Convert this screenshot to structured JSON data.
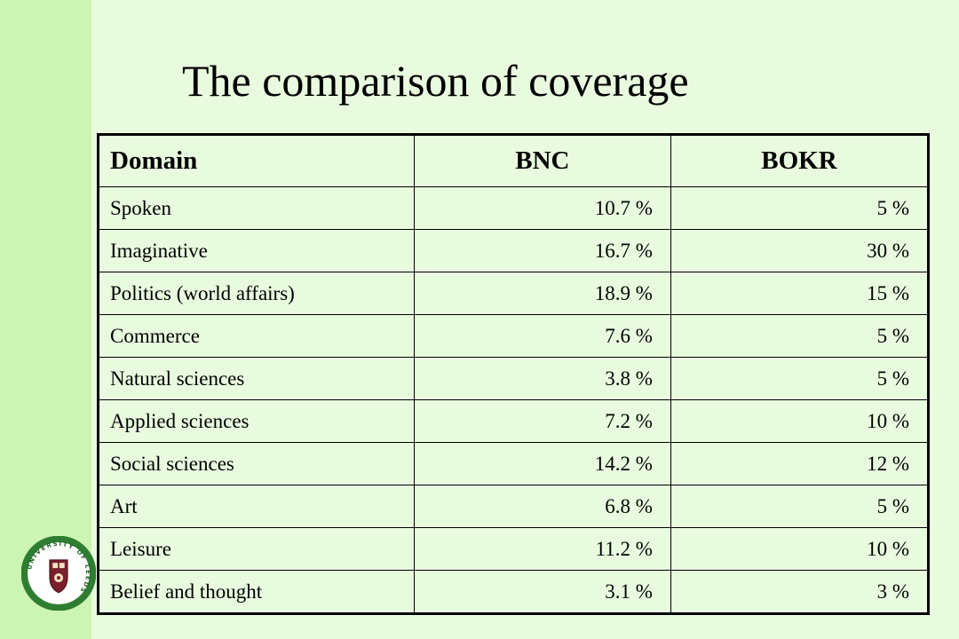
{
  "title": "The comparison of coverage",
  "table": {
    "headers": [
      "Domain",
      "BNC",
      "BOKR"
    ],
    "rows": [
      [
        "Spoken",
        "10.7 %",
        "5 %"
      ],
      [
        "Imaginative",
        "16.7 %",
        "30 %"
      ],
      [
        "Politics (world affairs)",
        "18.9 %",
        "15 %"
      ],
      [
        "Commerce",
        "7.6 %",
        "5 %"
      ],
      [
        "Natural sciences",
        "3.8 %",
        "5 %"
      ],
      [
        "Applied sciences",
        "7.2 %",
        "10 %"
      ],
      [
        "Social sciences",
        "14.2 %",
        "12 %"
      ],
      [
        "Art",
        "6.8 %",
        "5 %"
      ],
      [
        "Leisure",
        "11.2 %",
        "10 %"
      ],
      [
        "Belief and thought",
        "3.1 %",
        "3 %"
      ]
    ]
  },
  "logo": {
    "name": "university-of-leeds-logo",
    "text": "UNIVERSITY OF LEEDS",
    "ring_color": "#2e7d32",
    "shield_color": "#7a1f2b"
  },
  "colors": {
    "background": "#e9fbdf",
    "sidebar": "#ccf5b3"
  }
}
